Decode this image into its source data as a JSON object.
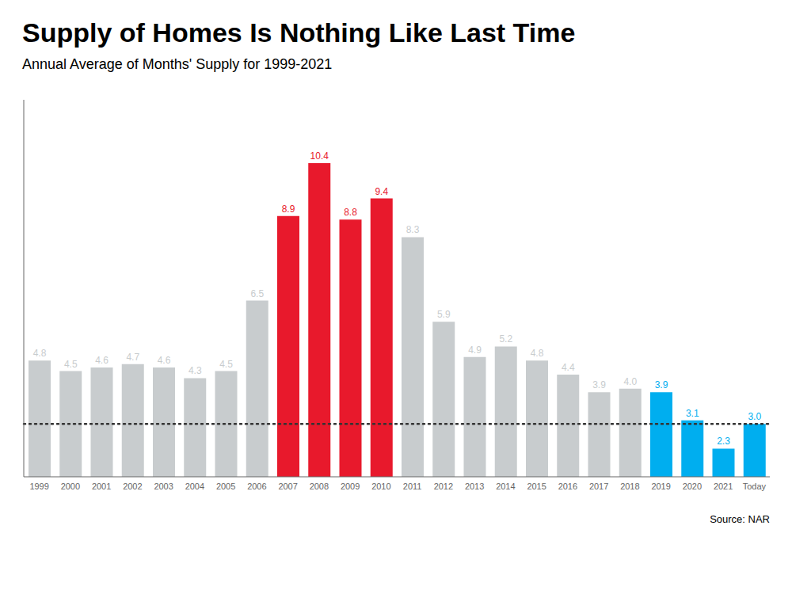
{
  "chart_data": {
    "type": "bar",
    "title": "Supply of Homes Is Nothing Like Last Time",
    "subtitle": "Annual Average of Months' Supply for 1999-2021",
    "source": "Source: NAR",
    "categories": [
      "1999",
      "2000",
      "2001",
      "2002",
      "2003",
      "2004",
      "2005",
      "2006",
      "2007",
      "2008",
      "2009",
      "2010",
      "2011",
      "2012",
      "2013",
      "2014",
      "2015",
      "2016",
      "2017",
      "2018",
      "2019",
      "2020",
      "2021",
      "Today"
    ],
    "values": [
      4.8,
      4.5,
      4.6,
      4.7,
      4.6,
      4.3,
      4.5,
      6.5,
      8.9,
      10.4,
      8.8,
      9.4,
      8.3,
      5.9,
      4.9,
      5.2,
      4.8,
      4.4,
      3.9,
      4.0,
      3.9,
      3.1,
      2.3,
      3.0
    ],
    "value_labels": [
      "4.8",
      "4.5",
      "4.6",
      "4.7",
      "4.6",
      "4.3",
      "4.5",
      "6.5",
      "8.9",
      "10.4",
      "8.8",
      "9.4",
      "8.3",
      "5.9",
      "4.9",
      "5.2",
      "4.8",
      "4.4",
      "3.9",
      "4.0",
      "3.9",
      "3.1",
      "2.3",
      "3.0"
    ],
    "colors": [
      "#c8ccce",
      "#c8ccce",
      "#c8ccce",
      "#c8ccce",
      "#c8ccce",
      "#c8ccce",
      "#c8ccce",
      "#c8ccce",
      "#e8192c",
      "#e8192c",
      "#e8192c",
      "#e8192c",
      "#c8ccce",
      "#c8ccce",
      "#c8ccce",
      "#c8ccce",
      "#c8ccce",
      "#c8ccce",
      "#c8ccce",
      "#c8ccce",
      "#00aeef",
      "#00aeef",
      "#00aeef",
      "#00aeef"
    ],
    "reference_line": {
      "y": 3.0,
      "color": "#333333",
      "line_style": "dotted"
    },
    "ylim": [
      1.5,
      12.2
    ],
    "data_labels": true,
    "tick_labels": "x",
    "grid": false
  }
}
